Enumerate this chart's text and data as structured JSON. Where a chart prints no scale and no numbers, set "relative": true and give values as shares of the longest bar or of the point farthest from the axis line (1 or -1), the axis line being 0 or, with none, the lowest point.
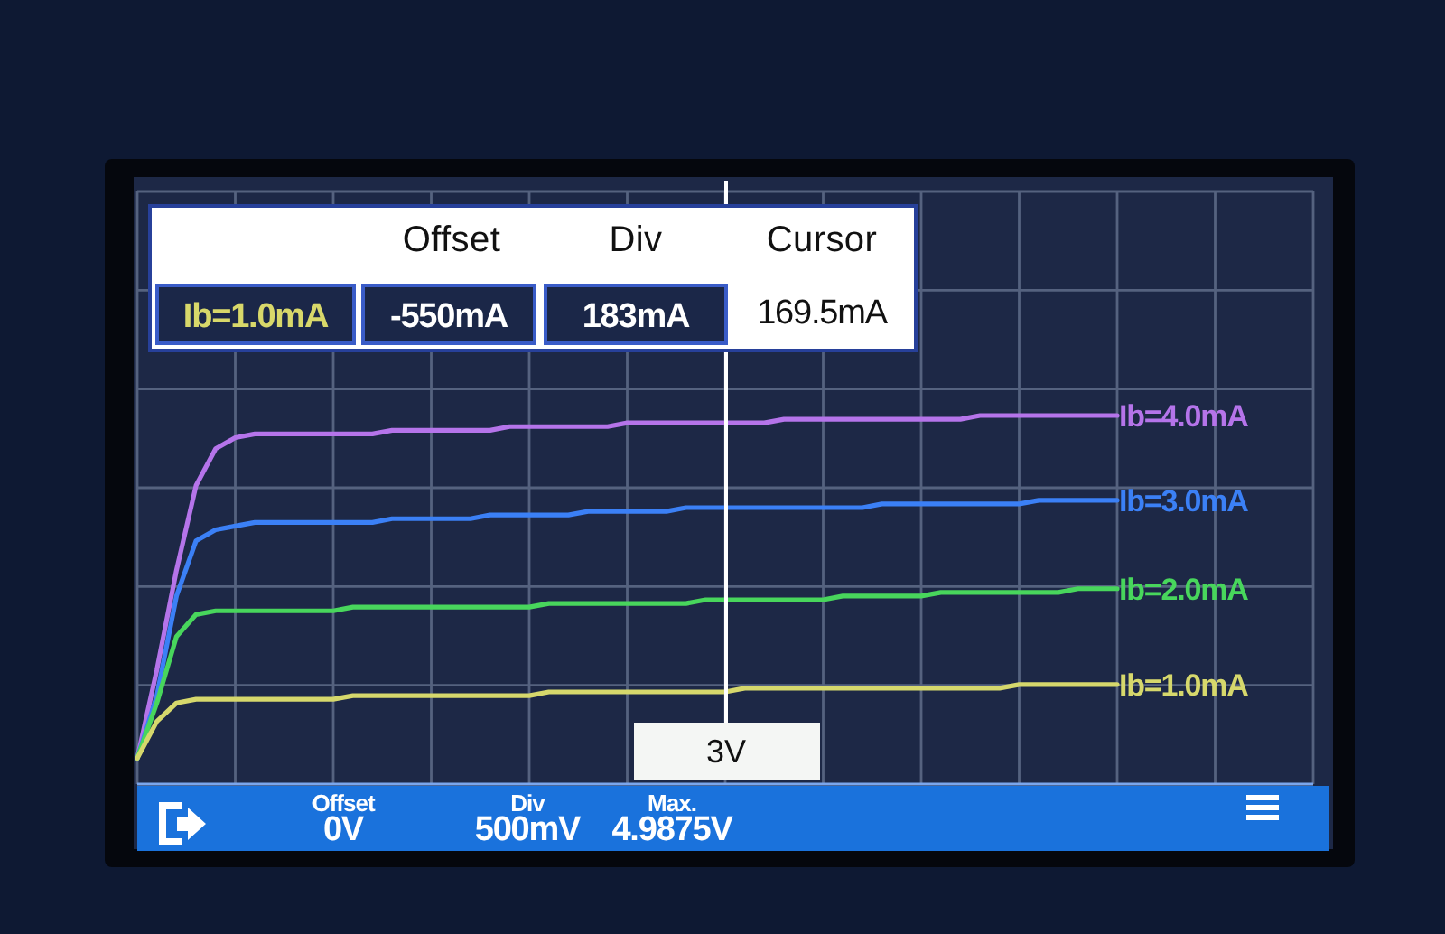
{
  "chart_data": {
    "type": "line",
    "relative": true,
    "grid": true,
    "categories": [
      null,
      null,
      null,
      null,
      null,
      null,
      null,
      null,
      null,
      null,
      null,
      null,
      null,
      null,
      null,
      null,
      null,
      null,
      null,
      null,
      null,
      null,
      null,
      null,
      null,
      null,
      null,
      null,
      null,
      null,
      null,
      null,
      null,
      null,
      null,
      null,
      null,
      null,
      null,
      null,
      null,
      null,
      null,
      null,
      null,
      null,
      null,
      null,
      null,
      null,
      null,
      null,
      null,
      null,
      null,
      null,
      null,
      null,
      null,
      null,
      null
    ],
    "series": [
      {
        "name": "Ib=4.0mA",
        "color": "#b574ea",
        "values": [
          0.07,
          0.31,
          0.58,
          0.81,
          0.91,
          0.94,
          0.95,
          0.95,
          0.95,
          0.95,
          0.95,
          0.95,
          0.95,
          0.96,
          0.96,
          0.96,
          0.96,
          0.96,
          0.96,
          0.97,
          0.97,
          0.97,
          0.97,
          0.97,
          0.97,
          0.98,
          0.98,
          0.98,
          0.98,
          0.98,
          0.98,
          0.98,
          0.98,
          0.99,
          0.99,
          0.99,
          0.99,
          0.99,
          0.99,
          0.99,
          0.99,
          0.99,
          0.99,
          1.0,
          1.0,
          1.0,
          1.0,
          1.0,
          1.0,
          1.0,
          1.0,
          null,
          null,
          null,
          null,
          null,
          null,
          null,
          null,
          null,
          null
        ]
      },
      {
        "name": "Ib=3.0mA",
        "color": "#3b80f6",
        "values": [
          0.07,
          0.24,
          0.51,
          0.66,
          0.69,
          0.7,
          0.71,
          0.71,
          0.71,
          0.71,
          0.71,
          0.71,
          0.71,
          0.72,
          0.72,
          0.72,
          0.72,
          0.72,
          0.73,
          0.73,
          0.73,
          0.73,
          0.73,
          0.74,
          0.74,
          0.74,
          0.74,
          0.74,
          0.75,
          0.75,
          0.75,
          0.75,
          0.75,
          0.75,
          0.75,
          0.75,
          0.75,
          0.75,
          0.76,
          0.76,
          0.76,
          0.76,
          0.76,
          0.76,
          0.76,
          0.76,
          0.77,
          0.77,
          0.77,
          0.77,
          0.77,
          null,
          null,
          null,
          null,
          null,
          null,
          null,
          null,
          null,
          null
        ]
      },
      {
        "name": "Ib=2.0mA",
        "color": "#48d65c",
        "values": [
          0.07,
          0.22,
          0.4,
          0.46,
          0.47,
          0.47,
          0.47,
          0.47,
          0.47,
          0.47,
          0.47,
          0.48,
          0.48,
          0.48,
          0.48,
          0.48,
          0.48,
          0.48,
          0.48,
          0.48,
          0.48,
          0.49,
          0.49,
          0.49,
          0.49,
          0.49,
          0.49,
          0.49,
          0.49,
          0.5,
          0.5,
          0.5,
          0.5,
          0.5,
          0.5,
          0.5,
          0.51,
          0.51,
          0.51,
          0.51,
          0.51,
          0.52,
          0.52,
          0.52,
          0.52,
          0.52,
          0.52,
          0.52,
          0.53,
          0.53,
          0.53,
          null,
          null,
          null,
          null,
          null,
          null,
          null,
          null,
          null,
          null
        ]
      },
      {
        "name": "Ib=1.0mA",
        "color": "#d6d86c",
        "values": [
          0.07,
          0.17,
          0.22,
          0.23,
          0.23,
          0.23,
          0.23,
          0.23,
          0.23,
          0.23,
          0.23,
          0.24,
          0.24,
          0.24,
          0.24,
          0.24,
          0.24,
          0.24,
          0.24,
          0.24,
          0.24,
          0.25,
          0.25,
          0.25,
          0.25,
          0.25,
          0.25,
          0.25,
          0.25,
          0.25,
          0.25,
          0.26,
          0.26,
          0.26,
          0.26,
          0.26,
          0.26,
          0.26,
          0.26,
          0.26,
          0.26,
          0.26,
          0.26,
          0.26,
          0.26,
          0.27,
          0.27,
          0.27,
          0.27,
          0.27,
          0.27,
          null,
          null,
          null,
          null,
          null,
          null,
          null,
          null,
          null,
          null
        ]
      }
    ],
    "annotations": [
      "Offset",
      "Div",
      "Cursor",
      "Ib=1.0mA",
      "-550mA",
      "183mA",
      "169.5mA",
      "3V",
      "Offset",
      "0V",
      "Div",
      "500mV",
      "Max.",
      "4.9875V"
    ]
  }
}
